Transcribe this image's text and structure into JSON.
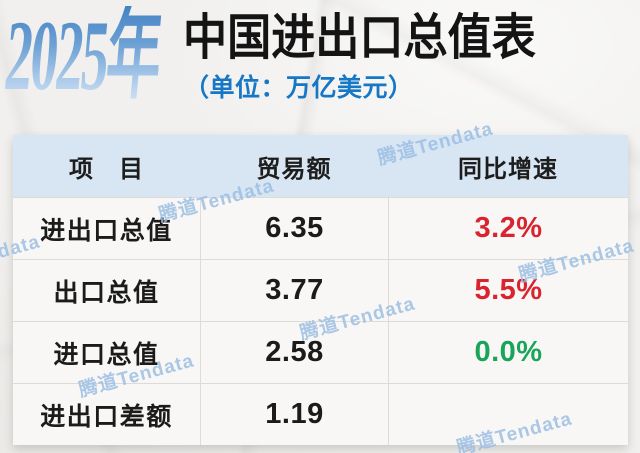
{
  "title": {
    "year": "2025年",
    "main": "中国进出口总值表",
    "unit": "（单位：万亿美元）"
  },
  "watermark": {
    "text": "腾道Tendata"
  },
  "table": {
    "headers": [
      "项　目",
      "贸易额",
      "同比增速"
    ],
    "rows": [
      {
        "item": "进出口总值",
        "value": "6.35",
        "growth": "3.2%",
        "tone": "red"
      },
      {
        "item": "出口总值",
        "value": "3.77",
        "growth": "5.5%",
        "tone": "red"
      },
      {
        "item": "进口总值",
        "value": "2.58",
        "growth": "0.0%",
        "tone": "green"
      },
      {
        "item": "进出口差额",
        "value": "1.19",
        "growth": "",
        "tone": "none"
      }
    ]
  },
  "colors": {
    "title_gradient_top": "#4683c5",
    "title_gradient_bottom": "#d7e6f5",
    "title_dark": "#141414",
    "unit_blue": "#1677c6",
    "header_bg": "#d8e5f3",
    "row_bg": "#f8f7f5",
    "paper_bg": "#f1f0ee",
    "border_gray": "#dcdbd8",
    "growth_up_red": "#d9232e",
    "growth_flat_green": "#18a55a",
    "watermark_blue": "#9dbfe4"
  },
  "chart_data": {
    "type": "table",
    "title": "2025年中国进出口总值表",
    "subtitle": "（单位：万亿美元）",
    "columns": [
      "项目",
      "贸易额",
      "同比增速"
    ],
    "rows": [
      [
        "进出口总值",
        6.35,
        "3.2%"
      ],
      [
        "出口总值",
        3.77,
        "5.5%"
      ],
      [
        "进口总值",
        2.58,
        "0.0%"
      ],
      [
        "进出口差额",
        1.19,
        ""
      ]
    ],
    "notes": "growth positive values shown in red, zero in green; last row growth cell empty"
  }
}
